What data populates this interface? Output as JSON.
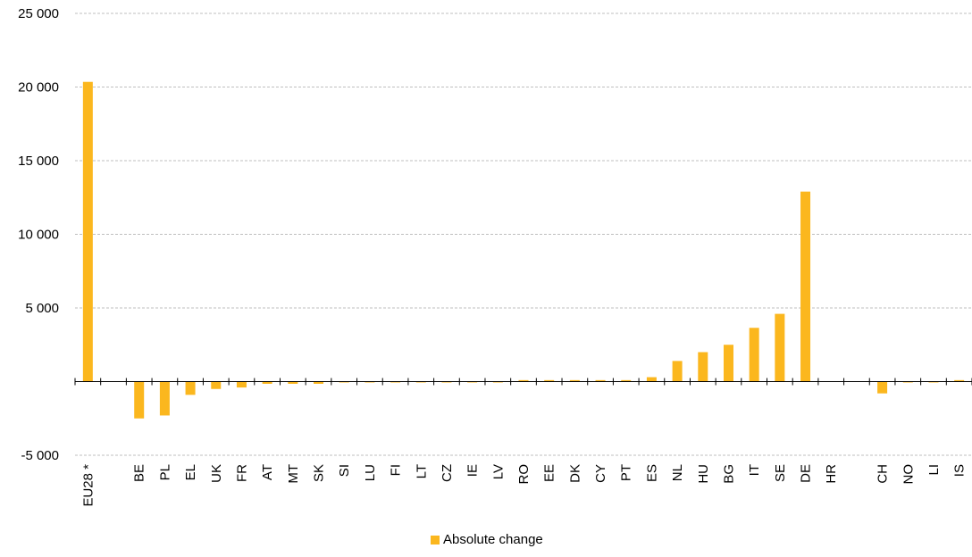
{
  "chart_data": {
    "type": "bar",
    "categories": [
      "EU28 *",
      "",
      "BE",
      "PL",
      "EL",
      "UK",
      "FR",
      "AT",
      "MT",
      "SK",
      "SI",
      "LU",
      "FI",
      "LT",
      "CZ",
      "IE",
      "LV",
      "RO",
      "EE",
      "DK",
      "CY",
      "PT",
      "ES",
      "NL",
      "HU",
      "BG",
      "IT",
      "SE",
      "DE",
      "HR",
      "",
      "CH",
      "NO",
      "LI",
      "IS"
    ],
    "series": [
      {
        "name": "Absolute change",
        "values": [
          20350,
          null,
          -2500,
          -2300,
          -900,
          -500,
          -400,
          -150,
          -150,
          -150,
          -50,
          -50,
          -50,
          -50,
          -50,
          -50,
          -50,
          100,
          100,
          100,
          100,
          100,
          300,
          1400,
          2000,
          2500,
          3650,
          4600,
          12900,
          0,
          null,
          -800,
          -50,
          -50,
          100
        ]
      }
    ],
    "yticks": [
      "25 000",
      "20 000",
      "15 000",
      "10 000",
      "5 000",
      "-5 000"
    ],
    "ylim": [
      -5000,
      25000
    ],
    "grid": true,
    "legend_position": "bottom-center",
    "bar_color": "#FBB71E",
    "grid_color": "#BFBFBF"
  }
}
